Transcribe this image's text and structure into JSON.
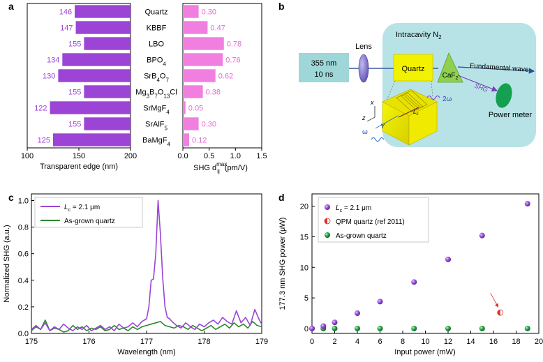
{
  "panel_labels": {
    "a": "a",
    "b": "b",
    "c": "c",
    "d": "d"
  },
  "colors": {
    "purple": "#9b44d6",
    "pink": "#f07fe0",
    "pink_text": "#e46bd6",
    "green": "#2a8a2a",
    "green_dot": "#1f9a3a",
    "cyan_box": "#b7e3e6",
    "source_box": "#9fd7d8",
    "lens": "#7a6cc9",
    "quartz_yellow": "#f2f200",
    "caf2_green": "#8fd14f",
    "meter_green": "#14a050",
    "red": "#e03030"
  },
  "diagram": {
    "source_line1": "355 nm",
    "source_line2": "10 ns",
    "lens_label": "Lens",
    "cavity_label_main": "Intracavity N",
    "cavity_label_sub": "2",
    "quartz_label": "Quartz",
    "caf2_main": "CaF",
    "caf2_sub": "2",
    "fundamental_label": "Fundamental wave",
    "shg_label": "SHG",
    "meter_label": "Power meter",
    "two_omega": "2ω",
    "omega": "ω",
    "axis_x": "x",
    "axis_y": "Y",
    "axis_z": "z",
    "axis_lc": "L",
    "axis_lc_sub": "c"
  },
  "chart_data": [
    {
      "panel": "a-left",
      "type": "bar",
      "orientation": "horizontal",
      "categories": [
        "Quartz",
        "KBBF",
        "LBO",
        "BPO4",
        "SrB4O7",
        "Mg3B7O13Cl",
        "SrMgF4",
        "SrAlF5",
        "BaMgF4"
      ],
      "category_labels": [
        {
          "parts": [
            {
              "t": "Quartz"
            }
          ]
        },
        {
          "parts": [
            {
              "t": "KBBF"
            }
          ]
        },
        {
          "parts": [
            {
              "t": "LBO"
            }
          ]
        },
        {
          "parts": [
            {
              "t": "BPO"
            },
            {
              "t": "4",
              "sub": true
            }
          ]
        },
        {
          "parts": [
            {
              "t": "SrB"
            },
            {
              "t": "4",
              "sub": true
            },
            {
              "t": "O"
            },
            {
              "t": "7",
              "sub": true
            }
          ]
        },
        {
          "parts": [
            {
              "t": "Mg"
            },
            {
              "t": "3",
              "sub": true
            },
            {
              "t": "B"
            },
            {
              "t": "7",
              "sub": true
            },
            {
              "t": "O"
            },
            {
              "t": "13",
              "sub": true
            },
            {
              "t": "Cl"
            }
          ]
        },
        {
          "parts": [
            {
              "t": "SrMgF"
            },
            {
              "t": "4",
              "sub": true
            }
          ]
        },
        {
          "parts": [
            {
              "t": "SrAlF"
            },
            {
              "t": "5",
              "sub": true
            }
          ]
        },
        {
          "parts": [
            {
              "t": "BaMgF"
            },
            {
              "t": "4",
              "sub": true
            }
          ]
        }
      ],
      "values": [
        146,
        147,
        155,
        134,
        130,
        155,
        122,
        155,
        125
      ],
      "value_labels": [
        "146",
        "147",
        "155",
        "134",
        "130",
        "155",
        "122",
        "155",
        "125"
      ],
      "xlim": [
        100,
        200
      ],
      "xticks": [
        100,
        150,
        200
      ],
      "xtick_labels": [
        "100",
        "150",
        "200"
      ],
      "xaxis_reversed": true,
      "xlabel": "Transparent edge (nm)"
    },
    {
      "panel": "a-right",
      "type": "bar",
      "orientation": "horizontal",
      "categories": [
        "Quartz",
        "KBBF",
        "LBO",
        "BPO4",
        "SrB4O7",
        "Mg3B7O13Cl",
        "SrMgF4",
        "SrAlF5",
        "BaMgF4"
      ],
      "values": [
        0.3,
        0.47,
        0.78,
        0.76,
        0.62,
        0.38,
        0.05,
        0.3,
        0.12
      ],
      "value_labels": [
        "0.30",
        "0.47",
        "0.78",
        "0.76",
        "0.62",
        "0.38",
        "0.05",
        "0.30",
        "0.12"
      ],
      "xlim": [
        0,
        1.5
      ],
      "xticks": [
        0,
        0.5,
        1.0,
        1.5
      ],
      "xtick_labels": [
        "0.0",
        "0.5",
        "1.0",
        "1.5"
      ],
      "xlabel_main": "SHG d",
      "xlabel_sub": "ij",
      "xlabel_sup": "max",
      "xlabel_unit": " (pm/V)"
    },
    {
      "panel": "c",
      "type": "line",
      "xlabel": "Wavelength (nm)",
      "ylabel": "Normalized SHG (a.u.)",
      "xlim": [
        175,
        179
      ],
      "ylim": [
        0,
        1.05
      ],
      "xticks": [
        175,
        176,
        177,
        178,
        179
      ],
      "xtick_labels": [
        "175",
        "176",
        "177",
        "178",
        "179"
      ],
      "yticks": [
        0,
        0.2,
        0.4,
        0.6,
        0.8,
        1.0
      ],
      "ytick_labels": [
        "0.0",
        "0.2",
        "0.4",
        "0.6",
        "0.8",
        "1.0"
      ],
      "legend_position": "top-left",
      "series": [
        {
          "name": "Lc = 2.1 μm",
          "legend_main": "L",
          "legend_sub": "c",
          "legend_rest": " = 2.1 μm",
          "color": "#9b44d6",
          "x": [
            175.0,
            175.08,
            175.16,
            175.24,
            175.32,
            175.4,
            175.48,
            175.56,
            175.64,
            175.72,
            175.8,
            175.88,
            175.96,
            176.04,
            176.12,
            176.2,
            176.28,
            176.36,
            176.44,
            176.52,
            176.6,
            176.68,
            176.76,
            176.84,
            176.92,
            177.0,
            177.04,
            177.08,
            177.12,
            177.16,
            177.2,
            177.24,
            177.28,
            177.32,
            177.36,
            177.4,
            177.44,
            177.52,
            177.6,
            177.68,
            177.76,
            177.84,
            177.92,
            178.0,
            178.08,
            178.16,
            178.24,
            178.32,
            178.4,
            178.48,
            178.56,
            178.64,
            178.72,
            178.8,
            178.88,
            178.96,
            179.0
          ],
          "y": [
            0.03,
            0.06,
            0.03,
            0.08,
            0.02,
            0.05,
            0.03,
            0.07,
            0.04,
            0.02,
            0.05,
            0.03,
            0.06,
            0.02,
            0.04,
            0.06,
            0.03,
            0.05,
            0.02,
            0.07,
            0.04,
            0.05,
            0.08,
            0.05,
            0.09,
            0.11,
            0.2,
            0.4,
            0.41,
            0.6,
            1.0,
            0.75,
            0.42,
            0.2,
            0.12,
            0.11,
            0.09,
            0.06,
            0.04,
            0.08,
            0.05,
            0.03,
            0.07,
            0.05,
            0.08,
            0.1,
            0.07,
            0.12,
            0.09,
            0.07,
            0.17,
            0.08,
            0.12,
            0.06,
            0.18,
            0.1,
            0.07
          ]
        },
        {
          "name": "As-grown quartz",
          "legend_main": "As-grown quartz",
          "color": "#2a8a2a",
          "x": [
            175.0,
            175.08,
            175.16,
            175.24,
            175.32,
            175.4,
            175.48,
            175.56,
            175.64,
            175.72,
            175.8,
            175.88,
            175.96,
            176.04,
            176.12,
            176.2,
            176.28,
            176.36,
            176.44,
            176.52,
            176.6,
            176.68,
            176.76,
            176.84,
            176.92,
            177.0,
            177.08,
            177.16,
            177.24,
            177.32,
            177.4,
            177.48,
            177.56,
            177.64,
            177.72,
            177.8,
            177.88,
            177.96,
            178.04,
            178.12,
            178.2,
            178.28,
            178.36,
            178.44,
            178.52,
            178.6,
            178.68,
            178.76,
            178.84,
            178.92,
            179.0
          ],
          "y": [
            0.02,
            0.05,
            0.03,
            0.1,
            0.02,
            0.04,
            0.03,
            0.01,
            0.02,
            0.06,
            0.03,
            0.05,
            0.02,
            0.04,
            0.03,
            0.05,
            0.02,
            0.03,
            0.06,
            0.03,
            0.04,
            0.02,
            0.05,
            0.03,
            0.05,
            0.06,
            0.07,
            0.08,
            0.09,
            0.06,
            0.05,
            0.04,
            0.06,
            0.05,
            0.03,
            0.06,
            0.04,
            0.02,
            0.04,
            0.06,
            0.03,
            0.05,
            0.07,
            0.04,
            0.08,
            0.05,
            0.07,
            0.04,
            0.09,
            0.06,
            0.05
          ]
        }
      ]
    },
    {
      "panel": "d",
      "type": "scatter",
      "xlabel": "Input power (mW)",
      "ylabel": "177.3 nm SHG power (μW)",
      "xlim": [
        0,
        20
      ],
      "ylim": [
        -0.8,
        22
      ],
      "xticks": [
        0,
        2,
        4,
        6,
        8,
        10,
        12,
        14,
        16,
        18,
        20
      ],
      "xtick_labels": [
        "0",
        "2",
        "4",
        "6",
        "8",
        "10",
        "12",
        "14",
        "16",
        "18",
        "20"
      ],
      "yticks": [
        0,
        5,
        10,
        15,
        20
      ],
      "ytick_labels": [
        "0",
        "5",
        "10",
        "15",
        "20"
      ],
      "legend_position": "top-left",
      "series": [
        {
          "name": "Lc = 2.1 μm",
          "legend_main": "L",
          "legend_sub": "c",
          "legend_rest": " = 2.1 μm",
          "color": "#9b44d6",
          "x": [
            0,
            1,
            2,
            4,
            6,
            9,
            12,
            15,
            19
          ],
          "y": [
            0,
            0.4,
            1.0,
            2.5,
            4.4,
            7.6,
            11.3,
            15.2,
            20.4
          ]
        },
        {
          "name": "QPM quartz (ref 2011)",
          "legend_main": "QPM quartz (ref 2011)",
          "color": "#e03030",
          "x": [
            16.6
          ],
          "y": [
            2.6
          ]
        },
        {
          "name": "As-grown quartz",
          "legend_main": "As-grown quartz",
          "color": "#1f9a3a",
          "x": [
            0,
            1,
            2,
            4,
            6,
            9,
            12,
            15,
            19
          ],
          "y": [
            0,
            0,
            0,
            0,
            0,
            0,
            0,
            0,
            0
          ]
        }
      ]
    }
  ]
}
